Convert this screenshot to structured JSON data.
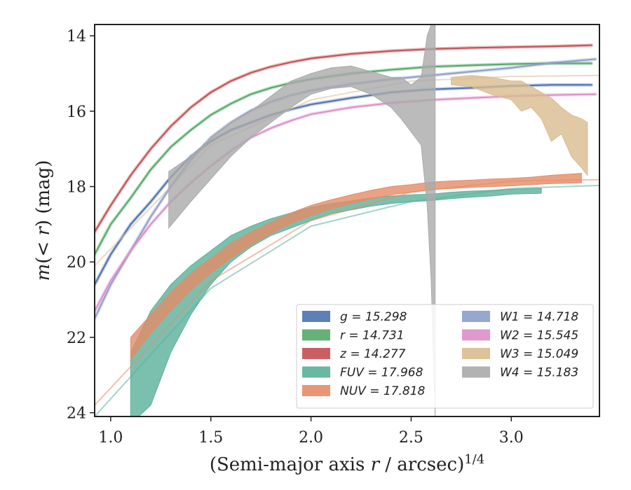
{
  "chart_data": {
    "type": "line",
    "xlabel": "(Semi-major axis r / arcsec)^1/4",
    "xlabel_parts": [
      "(Semi-major axis ",
      "r",
      " / arcsec)",
      "1/4"
    ],
    "ylabel": "m(< r) (mag)",
    "ylabel_parts": [
      "m",
      "(< ",
      "r",
      ") (mag)"
    ],
    "xlim": [
      0.92,
      3.44
    ],
    "ylim": [
      24.1,
      13.7
    ],
    "y_inverted": true,
    "xticks": [
      1.0,
      1.5,
      2.0,
      2.5,
      3.0
    ],
    "xtick_labels": [
      "1.0",
      "1.5",
      "2.0",
      "2.5",
      "3.0"
    ],
    "yticks": [
      14,
      16,
      18,
      20,
      22,
      24
    ],
    "ytick_labels": [
      "14",
      "16",
      "18",
      "20",
      "22",
      "24"
    ],
    "grid": false,
    "legend_placement": "lower-right",
    "series": [
      {
        "name": "g",
        "legend": "g = 15.298",
        "color": "#4c72b0",
        "x": [
          0.92,
          1.0,
          1.1,
          1.2,
          1.3,
          1.4,
          1.5,
          1.6,
          1.7,
          1.8,
          1.9,
          2.0,
          2.2,
          2.4,
          2.6,
          2.8,
          3.0,
          3.2,
          3.4
        ],
        "y": [
          20.6,
          19.8,
          19.0,
          18.4,
          17.75,
          17.2,
          16.8,
          16.5,
          16.3,
          16.1,
          15.95,
          15.82,
          15.65,
          15.5,
          15.42,
          15.38,
          15.33,
          15.3,
          15.3
        ]
      },
      {
        "name": "r",
        "legend": "r = 14.731",
        "color": "#55a868",
        "x": [
          0.92,
          1.0,
          1.1,
          1.2,
          1.3,
          1.4,
          1.5,
          1.6,
          1.7,
          1.8,
          1.9,
          2.0,
          2.2,
          2.4,
          2.6,
          2.8,
          3.0,
          3.2,
          3.4
        ],
        "y": [
          19.8,
          19.0,
          18.3,
          17.55,
          16.95,
          16.5,
          16.1,
          15.8,
          15.55,
          15.38,
          15.25,
          15.15,
          15.0,
          14.9,
          14.82,
          14.78,
          14.75,
          14.73,
          14.73
        ]
      },
      {
        "name": "z",
        "legend": "z = 14.277",
        "color": "#c44e52",
        "x": [
          0.92,
          1.0,
          1.1,
          1.2,
          1.3,
          1.4,
          1.5,
          1.6,
          1.7,
          1.8,
          1.9,
          2.0,
          2.2,
          2.4,
          2.6,
          2.8,
          3.0,
          3.2,
          3.4
        ],
        "y": [
          19.2,
          18.5,
          17.7,
          17.0,
          16.4,
          15.9,
          15.5,
          15.2,
          14.98,
          14.82,
          14.7,
          14.6,
          14.48,
          14.4,
          14.35,
          14.32,
          14.3,
          14.28,
          14.25
        ]
      },
      {
        "name": "FUV",
        "legend": "FUV = 17.968",
        "color": "#5ab09a",
        "x": [
          1.1,
          1.2,
          1.3,
          1.4,
          1.5,
          1.6,
          1.7,
          1.8,
          1.9,
          2.0,
          2.1,
          2.2,
          2.3,
          2.4,
          2.5,
          2.6,
          2.7,
          2.8,
          2.9,
          3.0,
          3.15
        ],
        "y_upper": [
          22.4,
          21.3,
          20.6,
          20.1,
          19.7,
          19.3,
          19.05,
          18.85,
          18.7,
          18.55,
          18.45,
          18.38,
          18.3,
          18.25,
          18.22,
          18.2,
          18.15,
          18.12,
          18.1,
          18.07,
          18.05
        ],
        "y_lower": [
          24.3,
          23.8,
          22.4,
          21.4,
          20.6,
          20.0,
          19.6,
          19.3,
          19.1,
          18.9,
          18.72,
          18.62,
          18.52,
          18.45,
          18.4,
          18.37,
          18.32,
          18.28,
          18.25,
          18.2,
          18.18
        ],
        "extrap_x": [
          0.92,
          1.5,
          2.0,
          2.5,
          3.0,
          3.44
        ],
        "extrap_y": [
          24.1,
          20.7,
          19.05,
          18.4,
          18.05,
          17.97
        ]
      },
      {
        "name": "NUV",
        "legend": "NUV = 17.818",
        "color": "#e58b66",
        "x": [
          1.1,
          1.2,
          1.3,
          1.4,
          1.5,
          1.6,
          1.7,
          1.8,
          1.9,
          2.0,
          2.1,
          2.2,
          2.3,
          2.4,
          2.5,
          2.6,
          2.7,
          2.8,
          2.9,
          3.0,
          3.1,
          3.2,
          3.35
        ],
        "y_upper": [
          22.0,
          21.4,
          20.8,
          20.3,
          19.9,
          19.5,
          19.2,
          18.95,
          18.7,
          18.5,
          18.35,
          18.22,
          18.1,
          18.0,
          17.95,
          17.88,
          17.85,
          17.83,
          17.8,
          17.78,
          17.75,
          17.7,
          17.65
        ],
        "y_lower": [
          22.6,
          21.9,
          21.3,
          20.75,
          20.3,
          19.9,
          19.55,
          19.25,
          18.98,
          18.77,
          18.6,
          18.45,
          18.33,
          18.22,
          18.15,
          18.08,
          18.05,
          18.02,
          18.0,
          17.98,
          17.95,
          17.92,
          17.9
        ],
        "extrap_x": [
          0.92,
          1.5,
          2.0,
          2.5,
          3.0,
          3.44
        ],
        "extrap_y": [
          23.8,
          20.5,
          18.9,
          18.15,
          17.85,
          17.82
        ]
      },
      {
        "name": "W1",
        "legend": "W1 = 14.718",
        "color": "#8c9fc9",
        "x": [
          0.92,
          1.0,
          1.1,
          1.2,
          1.3,
          1.4,
          1.5,
          1.6,
          1.7,
          1.8,
          1.9,
          2.0,
          2.2,
          2.4,
          2.6,
          2.8,
          3.0,
          3.2,
          3.42
        ],
        "y": [
          21.5,
          20.6,
          19.7,
          18.8,
          18.0,
          17.3,
          16.7,
          16.3,
          15.98,
          15.75,
          15.58,
          15.45,
          15.28,
          15.15,
          15.05,
          14.95,
          14.85,
          14.72,
          14.62
        ]
      },
      {
        "name": "W2",
        "legend": "W2 = 15.545",
        "color": "#dd8fc8",
        "x": [
          0.92,
          1.0,
          1.1,
          1.2,
          1.3,
          1.4,
          1.5,
          1.6,
          1.7,
          1.8,
          1.9,
          2.0,
          2.2,
          2.4,
          2.6,
          2.8,
          3.0,
          3.2,
          3.42
        ],
        "y": [
          21.3,
          20.5,
          19.7,
          19.0,
          18.4,
          17.9,
          17.45,
          17.05,
          16.7,
          16.45,
          16.25,
          16.08,
          15.9,
          15.78,
          15.7,
          15.65,
          15.6,
          15.57,
          15.55
        ]
      },
      {
        "name": "W3",
        "legend": "W3 = 15.049",
        "color": "#d9bb8e",
        "x": [
          2.7,
          2.8,
          2.9,
          3.0,
          3.05,
          3.1,
          3.15,
          3.2,
          3.25,
          3.3,
          3.35,
          3.38
        ],
        "y_upper": [
          15.1,
          15.05,
          15.1,
          15.2,
          15.2,
          15.35,
          15.5,
          15.65,
          15.9,
          16.1,
          16.2,
          16.3
        ],
        "y_lower": [
          15.3,
          15.35,
          15.55,
          15.7,
          16.0,
          15.9,
          16.2,
          16.8,
          16.6,
          17.2,
          17.5,
          17.7
        ],
        "extrap_x": [
          0.92,
          1.5,
          2.0,
          2.5,
          3.0,
          3.44
        ],
        "extrap_y": [
          20.1,
          16.9,
          15.7,
          15.2,
          15.08,
          15.05
        ]
      },
      {
        "name": "W4",
        "legend": "W4 = 15.183",
        "color": "#aaaaaa",
        "x": [
          1.29,
          1.4,
          1.5,
          1.6,
          1.7,
          1.8,
          1.9,
          2.0,
          2.1,
          2.2,
          2.3,
          2.4,
          2.45,
          2.5,
          2.55,
          2.58,
          2.6,
          2.62
        ],
        "y_upper": [
          17.6,
          17.2,
          16.7,
          16.3,
          16.0,
          15.6,
          15.2,
          15.0,
          14.85,
          14.8,
          14.95,
          15.1,
          15.1,
          15.3,
          15.1,
          14.0,
          13.7,
          13.7
        ],
        "y_lower": [
          19.1,
          18.4,
          17.8,
          17.2,
          16.7,
          16.3,
          15.9,
          15.55,
          15.4,
          15.35,
          15.55,
          15.9,
          16.2,
          16.55,
          16.9,
          18.5,
          20.5,
          24.1
        ]
      }
    ]
  }
}
